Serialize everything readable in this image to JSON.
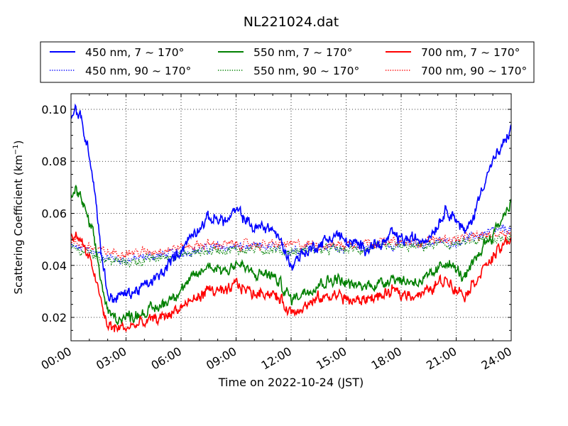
{
  "chart_data": {
    "type": "line",
    "title": "NL221024.dat",
    "xlabel": "Time on 2022-10-24 (JST)",
    "ylabel_main": "Scattering Coefficient (km",
    "ylabel_sup": "−1",
    "ylabel_close": ")",
    "x_range_hours": [
      0,
      24
    ],
    "ylim": [
      0.011,
      0.106
    ],
    "x_ticks": [
      {
        "hour": 0,
        "label": "00:00"
      },
      {
        "hour": 3,
        "label": "03:00"
      },
      {
        "hour": 6,
        "label": "06:00"
      },
      {
        "hour": 9,
        "label": "09:00"
      },
      {
        "hour": 12,
        "label": "12:00"
      },
      {
        "hour": 15,
        "label": "15:00"
      },
      {
        "hour": 18,
        "label": "18:00"
      },
      {
        "hour": 21,
        "label": "21:00"
      },
      {
        "hour": 24,
        "label": "24:00"
      }
    ],
    "y_ticks": [
      {
        "value": 0.02,
        "label": "0.02"
      },
      {
        "value": 0.04,
        "label": "0.04"
      },
      {
        "value": 0.06,
        "label": "0.06"
      },
      {
        "value": 0.08,
        "label": "0.08"
      },
      {
        "value": 0.1,
        "label": "0.10"
      }
    ],
    "grid": true,
    "legend_position": "top, above plot",
    "series": [
      {
        "name": "450 nm, 7 ~ 170°",
        "color": "#0000ff",
        "style": "solid",
        "x": [
          0,
          0.25,
          0.5,
          0.75,
          1.0,
          1.25,
          1.5,
          1.75,
          2.0,
          2.25,
          2.5,
          3.0,
          3.5,
          4.0,
          4.5,
          5.0,
          5.5,
          6.0,
          6.5,
          7.0,
          7.5,
          8.0,
          8.5,
          9.0,
          9.5,
          10.0,
          10.5,
          11.0,
          11.5,
          12.0,
          12.5,
          13.0,
          13.5,
          14.0,
          14.5,
          15.0,
          15.5,
          16.0,
          16.5,
          17.0,
          17.5,
          18.0,
          18.5,
          19.0,
          19.5,
          20.0,
          20.5,
          21.0,
          21.5,
          22.0,
          22.5,
          23.0,
          23.5,
          24.0
        ],
        "y": [
          0.096,
          0.1,
          0.097,
          0.09,
          0.083,
          0.072,
          0.055,
          0.04,
          0.029,
          0.027,
          0.028,
          0.029,
          0.03,
          0.032,
          0.034,
          0.037,
          0.042,
          0.046,
          0.051,
          0.055,
          0.058,
          0.058,
          0.057,
          0.061,
          0.058,
          0.054,
          0.055,
          0.054,
          0.048,
          0.04,
          0.044,
          0.046,
          0.048,
          0.05,
          0.052,
          0.049,
          0.048,
          0.047,
          0.048,
          0.048,
          0.052,
          0.05,
          0.05,
          0.05,
          0.051,
          0.056,
          0.062,
          0.058,
          0.052,
          0.06,
          0.072,
          0.08,
          0.085,
          0.093
        ]
      },
      {
        "name": "450 nm, 90 ~ 170°",
        "color": "#0000ff",
        "style": "dotted",
        "x": [
          0,
          1,
          2,
          3,
          4,
          5,
          6,
          7,
          8,
          9,
          10,
          11,
          12,
          13,
          14,
          15,
          16,
          17,
          18,
          19,
          20,
          21,
          22,
          23,
          24
        ],
        "y": [
          0.047,
          0.046,
          0.043,
          0.042,
          0.043,
          0.044,
          0.045,
          0.046,
          0.047,
          0.047,
          0.047,
          0.047,
          0.046,
          0.047,
          0.047,
          0.047,
          0.047,
          0.048,
          0.048,
          0.048,
          0.049,
          0.049,
          0.051,
          0.053,
          0.054
        ]
      },
      {
        "name": "550 nm, 7 ~ 170°",
        "color": "#008000",
        "style": "solid",
        "x": [
          0,
          0.25,
          0.5,
          0.75,
          1.0,
          1.25,
          1.5,
          1.75,
          2.0,
          2.25,
          2.5,
          3.0,
          3.5,
          4.0,
          4.5,
          5.0,
          5.5,
          6.0,
          6.5,
          7.0,
          7.5,
          8.0,
          8.5,
          9.0,
          9.5,
          10.0,
          10.5,
          11.0,
          11.5,
          12.0,
          12.5,
          13.0,
          13.5,
          14.0,
          14.5,
          15.0,
          15.5,
          16.0,
          16.5,
          17.0,
          17.5,
          18.0,
          18.5,
          19.0,
          19.5,
          20.0,
          20.5,
          21.0,
          21.5,
          22.0,
          22.5,
          23.0,
          23.5,
          24.0
        ],
        "y": [
          0.066,
          0.069,
          0.067,
          0.061,
          0.056,
          0.05,
          0.04,
          0.03,
          0.022,
          0.02,
          0.02,
          0.02,
          0.021,
          0.022,
          0.023,
          0.025,
          0.028,
          0.031,
          0.034,
          0.037,
          0.04,
          0.039,
          0.038,
          0.041,
          0.039,
          0.036,
          0.037,
          0.036,
          0.032,
          0.027,
          0.029,
          0.031,
          0.033,
          0.034,
          0.035,
          0.033,
          0.032,
          0.032,
          0.033,
          0.033,
          0.036,
          0.034,
          0.034,
          0.034,
          0.035,
          0.038,
          0.042,
          0.038,
          0.035,
          0.041,
          0.048,
          0.052,
          0.058,
          0.065
        ]
      },
      {
        "name": "550 nm, 90 ~ 170°",
        "color": "#008000",
        "style": "dotted",
        "x": [
          0,
          1,
          2,
          3,
          4,
          5,
          6,
          7,
          8,
          9,
          10,
          11,
          12,
          13,
          14,
          15,
          16,
          17,
          18,
          19,
          20,
          21,
          22,
          23,
          24
        ],
        "y": [
          0.046,
          0.045,
          0.042,
          0.041,
          0.042,
          0.043,
          0.044,
          0.045,
          0.046,
          0.046,
          0.046,
          0.046,
          0.045,
          0.046,
          0.046,
          0.046,
          0.046,
          0.047,
          0.047,
          0.047,
          0.048,
          0.048,
          0.049,
          0.05,
          0.051
        ]
      },
      {
        "name": "700 nm, 7 ~ 170°",
        "color": "#ff0000",
        "style": "solid",
        "x": [
          0,
          0.25,
          0.5,
          0.75,
          1.0,
          1.25,
          1.5,
          1.75,
          2.0,
          2.25,
          2.5,
          3.0,
          3.5,
          4.0,
          4.5,
          5.0,
          5.5,
          6.0,
          6.5,
          7.0,
          7.5,
          8.0,
          8.5,
          9.0,
          9.5,
          10.0,
          10.5,
          11.0,
          11.5,
          12.0,
          12.5,
          13.0,
          13.5,
          14.0,
          14.5,
          15.0,
          15.5,
          16.0,
          16.5,
          17.0,
          17.5,
          18.0,
          18.5,
          19.0,
          19.5,
          20.0,
          20.5,
          21.0,
          21.5,
          22.0,
          22.5,
          23.0,
          23.5,
          24.0
        ],
        "y": [
          0.05,
          0.052,
          0.05,
          0.046,
          0.042,
          0.038,
          0.03,
          0.022,
          0.017,
          0.016,
          0.016,
          0.016,
          0.017,
          0.018,
          0.019,
          0.02,
          0.022,
          0.024,
          0.026,
          0.028,
          0.031,
          0.03,
          0.029,
          0.033,
          0.031,
          0.029,
          0.03,
          0.029,
          0.026,
          0.022,
          0.024,
          0.025,
          0.027,
          0.028,
          0.029,
          0.027,
          0.026,
          0.027,
          0.028,
          0.028,
          0.03,
          0.029,
          0.029,
          0.029,
          0.03,
          0.033,
          0.035,
          0.031,
          0.029,
          0.034,
          0.039,
          0.043,
          0.047,
          0.051
        ]
      },
      {
        "name": "700 nm, 90 ~ 170°",
        "color": "#ff0000",
        "style": "dotted",
        "x": [
          0,
          1,
          2,
          3,
          4,
          5,
          6,
          7,
          8,
          9,
          10,
          11,
          12,
          13,
          14,
          15,
          16,
          17,
          18,
          19,
          20,
          21,
          22,
          23,
          24
        ],
        "y": [
          0.049,
          0.047,
          0.045,
          0.045,
          0.045,
          0.046,
          0.047,
          0.048,
          0.048,
          0.048,
          0.048,
          0.048,
          0.048,
          0.048,
          0.048,
          0.048,
          0.049,
          0.049,
          0.049,
          0.049,
          0.05,
          0.05,
          0.051,
          0.052,
          0.053
        ]
      }
    ]
  }
}
